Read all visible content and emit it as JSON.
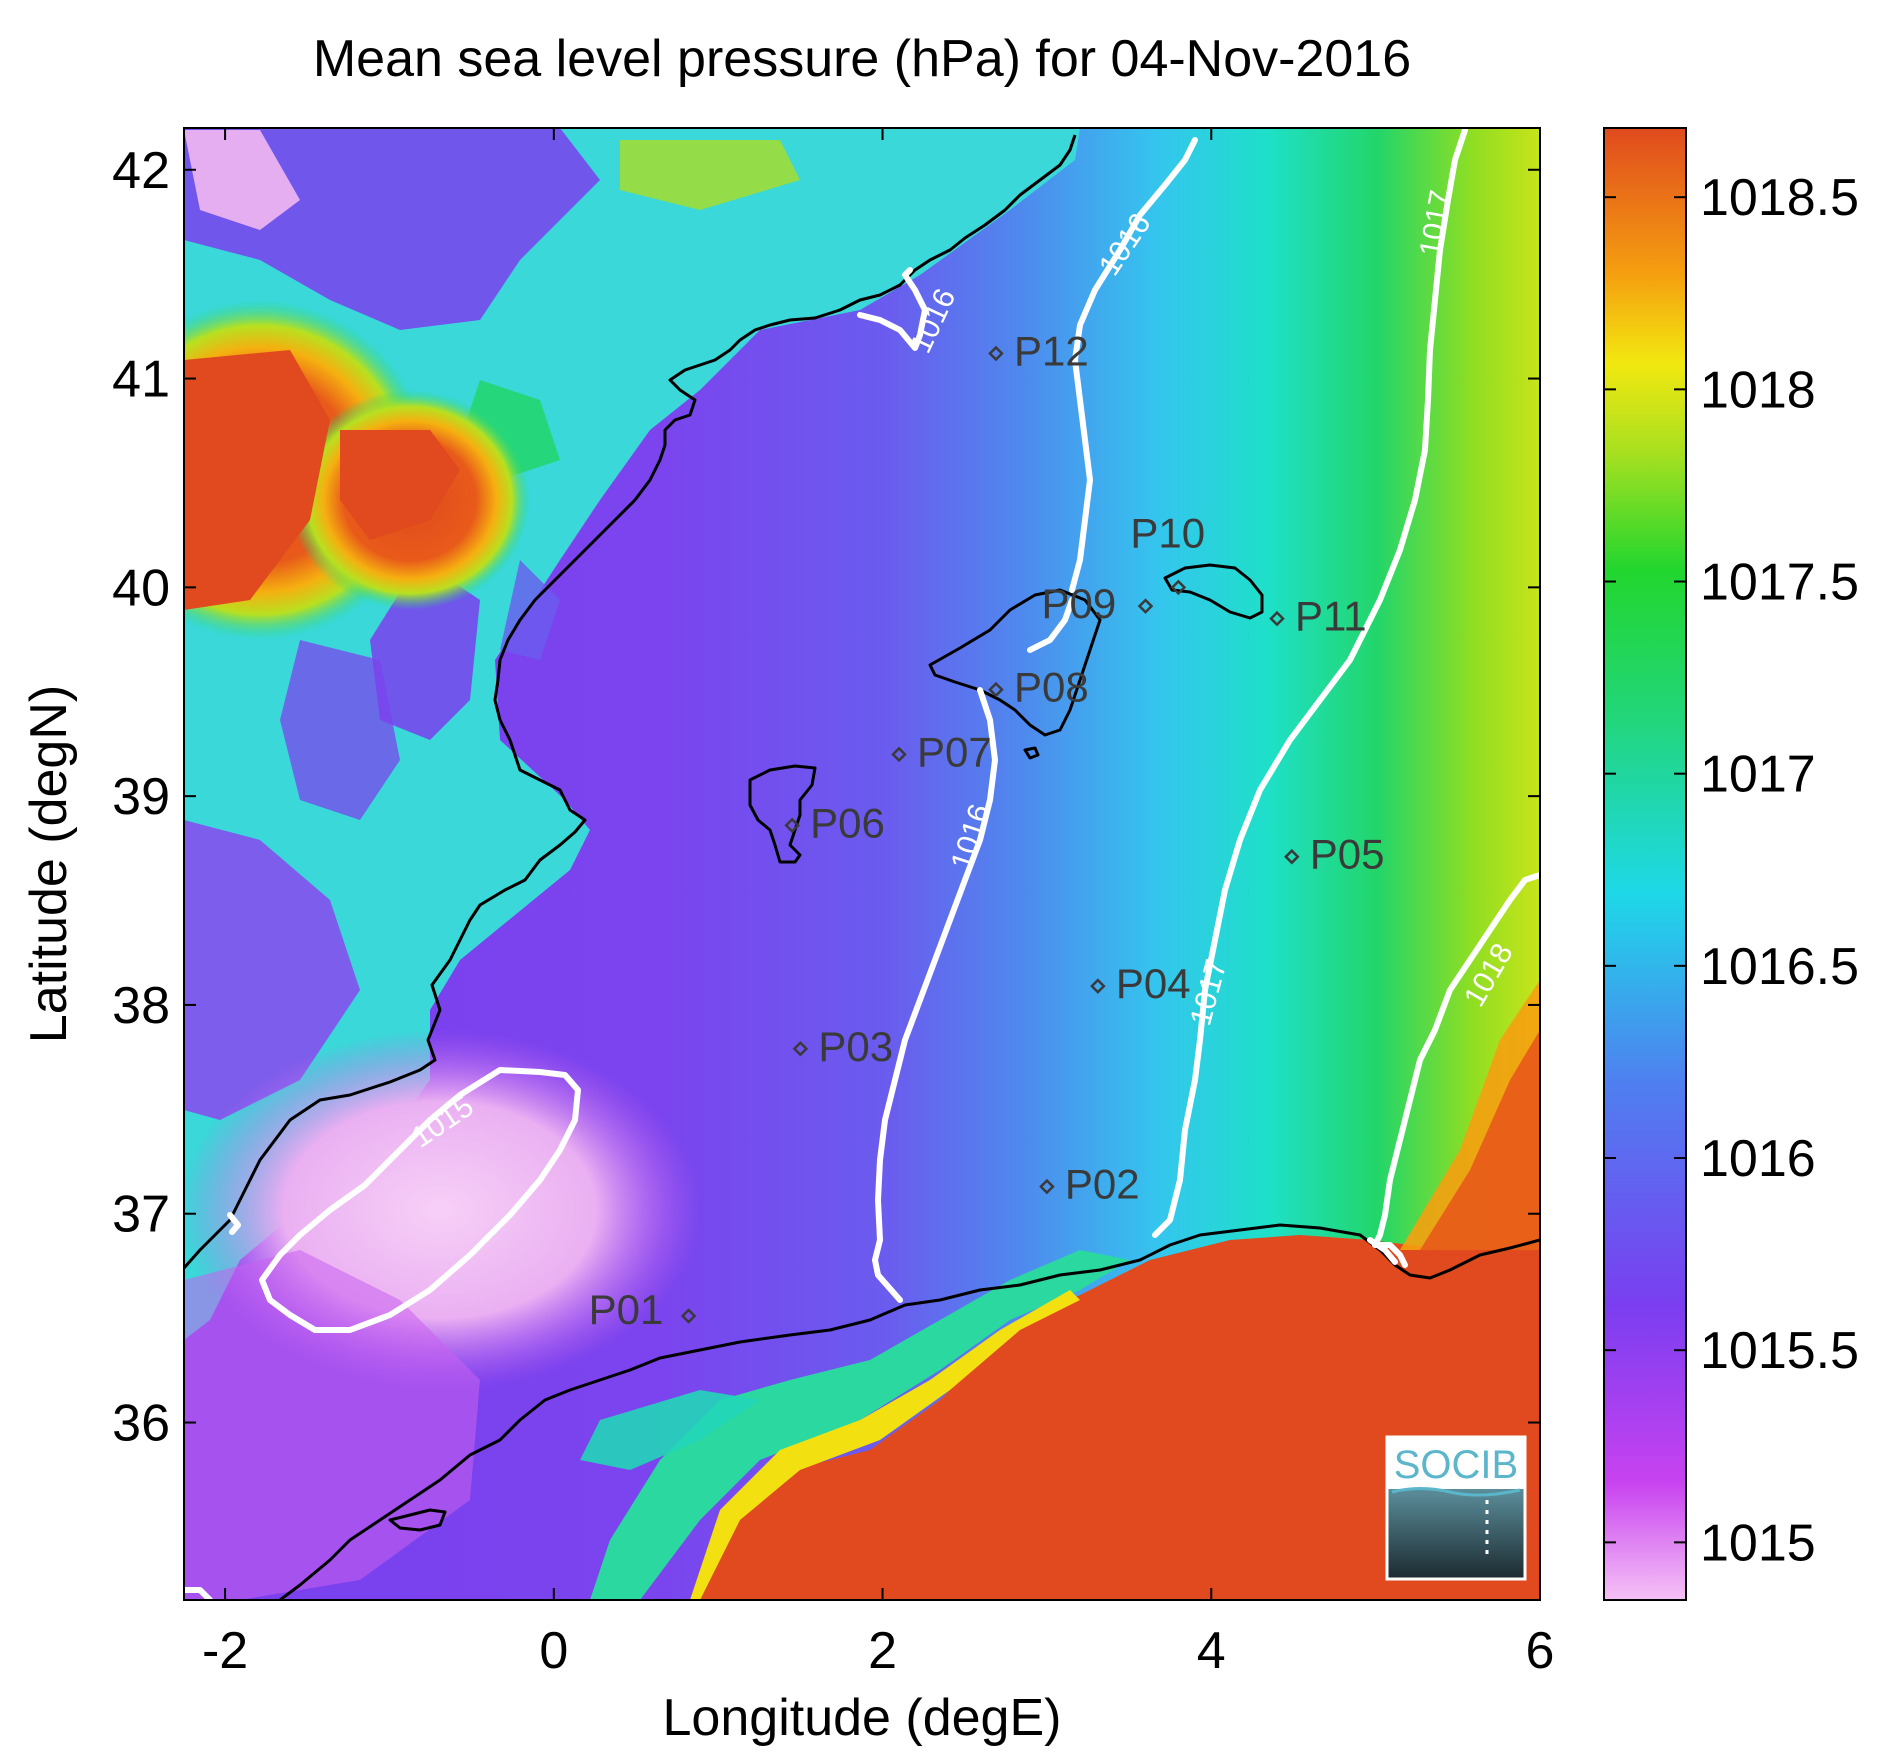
{
  "title": "Mean sea level pressure (hPa) for 04-Nov-2016",
  "x_axis": {
    "label": "Longitude (degE)",
    "ticks": [
      "-2",
      "0",
      "2",
      "4",
      "6"
    ]
  },
  "y_axis": {
    "label": "Latitude (degN)",
    "ticks": [
      "42",
      "41",
      "40",
      "39",
      "38",
      "37",
      "36"
    ]
  },
  "colorbar": {
    "ticks": [
      "1018.5",
      "1018",
      "1017.5",
      "1017",
      "1016.5",
      "1016",
      "1015.5",
      "1015"
    ]
  },
  "contour_labels": [
    "1015",
    "1016",
    "1016",
    "1016",
    "1017",
    "1017",
    "1018"
  ],
  "stations": [
    {
      "id": "P01",
      "lon": 0.82,
      "lat": 36.51
    },
    {
      "id": "P02",
      "lon": 3.0,
      "lat": 37.13
    },
    {
      "id": "P03",
      "lon": 1.5,
      "lat": 37.79
    },
    {
      "id": "P04",
      "lon": 3.31,
      "lat": 38.09
    },
    {
      "id": "P05",
      "lon": 4.49,
      "lat": 38.71
    },
    {
      "id": "P06",
      "lon": 1.45,
      "lat": 38.86
    },
    {
      "id": "P07",
      "lon": 2.1,
      "lat": 39.2
    },
    {
      "id": "P08",
      "lon": 2.69,
      "lat": 39.51
    },
    {
      "id": "P09",
      "lon": 3.6,
      "lat": 39.91
    },
    {
      "id": "P10",
      "lon": 3.8,
      "lat": 40.0
    },
    {
      "id": "P11",
      "lon": 4.4,
      "lat": 39.85
    },
    {
      "id": "P12",
      "lon": 2.69,
      "lat": 41.12
    }
  ],
  "logo": {
    "text": "SOCIB"
  },
  "colors": {
    "high": "#e04a1e",
    "mid": "#22d62e",
    "low_mid": "#7a3ef0",
    "low": "#f2b8f2",
    "contour": "#ffffff",
    "coast": "#000000"
  }
}
